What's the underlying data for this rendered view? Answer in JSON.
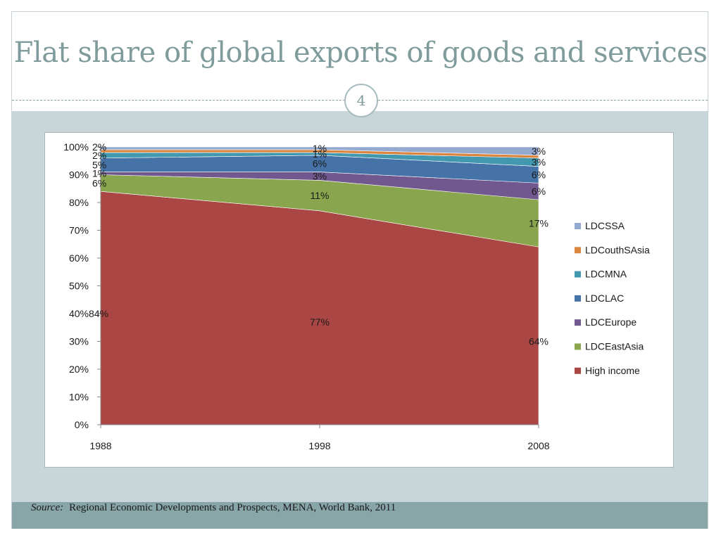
{
  "slide": {
    "title": "Flat share of global exports of goods and services",
    "number": "4",
    "source_label": "Source:",
    "source_text": "Regional Economic Developments and Prospects, MENA, World Bank, 2011"
  },
  "chart_data": {
    "type": "area",
    "stacked": true,
    "categories": [
      "1988",
      "1998",
      "2008"
    ],
    "y_ticks": [
      "0%",
      "10%",
      "20%",
      "30%",
      "40%",
      "50%",
      "60%",
      "70%",
      "80%",
      "90%",
      "100%"
    ],
    "ylim": [
      0,
      100
    ],
    "legend_position": "right",
    "series": [
      {
        "name": "High income",
        "values": [
          84,
          77,
          64
        ],
        "labels": [
          "84%",
          "77%",
          "64%"
        ],
        "color": "#aa4643"
      },
      {
        "name": "LDCEastAsia",
        "values": [
          6,
          11,
          17
        ],
        "labels": [
          "6%",
          "11%",
          "17%"
        ],
        "color": "#89a54e"
      },
      {
        "name": "LDCEurope",
        "values": [
          1,
          3,
          6
        ],
        "labels": [
          "1%",
          "3%",
          "6%"
        ],
        "color": "#71588f"
      },
      {
        "name": "LDCLAC",
        "values": [
          5,
          6,
          6
        ],
        "labels": [
          "5%",
          "6%",
          "6%"
        ],
        "color": "#4572a7"
      },
      {
        "name": "LDCMNA",
        "values": [
          2,
          1,
          3
        ],
        "labels": [
          "2%",
          "1%",
          "3%"
        ],
        "color": "#4198af"
      },
      {
        "name": "LDCouthSAsia",
        "values": [
          1,
          1,
          1
        ],
        "labels": [
          "",
          "",
          ""
        ],
        "color": "#db843d"
      },
      {
        "name": "LDCSSA",
        "values": [
          2,
          1,
          3
        ],
        "labels": [
          "2%",
          "1%",
          "3%"
        ],
        "color": "#93a9cf"
      }
    ],
    "legend_order": [
      "LDCSSA",
      "LDCouthSAsia",
      "LDCMNA",
      "LDCLAC",
      "LDCEurope",
      "LDCEastAsia",
      "High income"
    ]
  }
}
